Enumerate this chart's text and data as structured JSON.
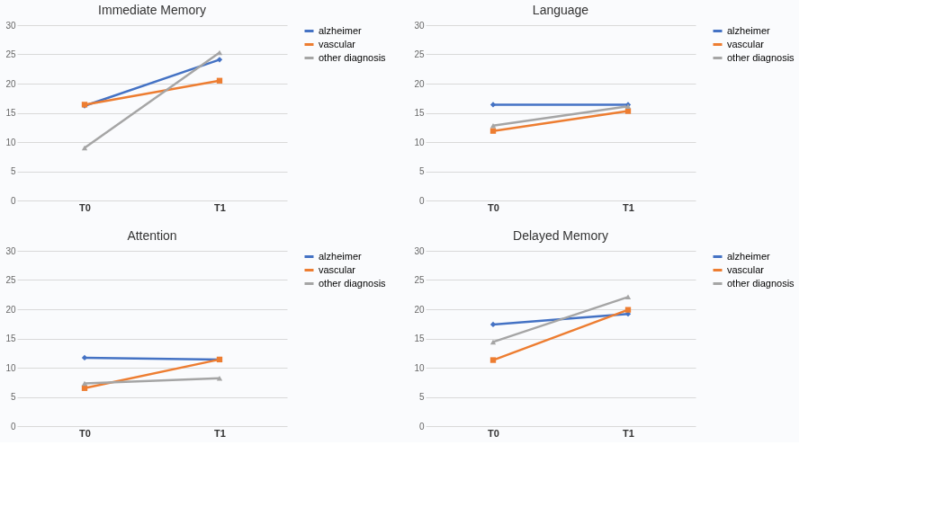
{
  "chart_data": [
    {
      "type": "line",
      "title": "Immediate Memory",
      "categories": [
        "T0",
        "T1"
      ],
      "ylim": [
        0,
        30
      ],
      "yticks": [
        0,
        5,
        10,
        15,
        20,
        25,
        30
      ],
      "grid": "y",
      "legend": "right",
      "series": [
        {
          "name": "alzheimer",
          "color": "#4472c4",
          "marker": "diamond",
          "values": [
            16.2,
            24.1
          ]
        },
        {
          "name": "vascular",
          "color": "#ed7d31",
          "marker": "square",
          "values": [
            16.4,
            20.5
          ]
        },
        {
          "name": "other diagnosis",
          "color": "#a5a5a5",
          "marker": "triangle",
          "values": [
            9.0,
            25.3
          ]
        }
      ]
    },
    {
      "type": "line",
      "title": "Language",
      "categories": [
        "T0",
        "T1"
      ],
      "ylim": [
        0,
        30
      ],
      "yticks": [
        0,
        5,
        10,
        15,
        20,
        25,
        30
      ],
      "grid": "y",
      "legend": "right",
      "series": [
        {
          "name": "alzheimer",
          "color": "#4472c4",
          "marker": "diamond",
          "values": [
            16.4,
            16.4
          ]
        },
        {
          "name": "vascular",
          "color": "#ed7d31",
          "marker": "square",
          "values": [
            11.9,
            15.3
          ]
        },
        {
          "name": "other diagnosis",
          "color": "#a5a5a5",
          "marker": "triangle",
          "values": [
            12.8,
            16.1
          ]
        }
      ]
    },
    {
      "type": "line",
      "title": "Attention",
      "categories": [
        "T0",
        "T1"
      ],
      "ylim": [
        0,
        30
      ],
      "yticks": [
        0,
        5,
        10,
        15,
        20,
        25,
        30
      ],
      "grid": "y",
      "legend": "right",
      "series": [
        {
          "name": "alzheimer",
          "color": "#4472c4",
          "marker": "diamond",
          "values": [
            11.7,
            11.4
          ]
        },
        {
          "name": "vascular",
          "color": "#ed7d31",
          "marker": "square",
          "values": [
            6.5,
            11.4
          ]
        },
        {
          "name": "other diagnosis",
          "color": "#a5a5a5",
          "marker": "triangle",
          "values": [
            7.3,
            8.2
          ]
        }
      ]
    },
    {
      "type": "line",
      "title": "Delayed Memory",
      "categories": [
        "T0",
        "T1"
      ],
      "ylim": [
        0,
        30
      ],
      "yticks": [
        0,
        5,
        10,
        15,
        20,
        25,
        30
      ],
      "grid": "y",
      "legend": "right",
      "series": [
        {
          "name": "alzheimer",
          "color": "#4472c4",
          "marker": "diamond",
          "values": [
            17.4,
            19.2
          ]
        },
        {
          "name": "vascular",
          "color": "#ed7d31",
          "marker": "square",
          "values": [
            11.3,
            19.9
          ]
        },
        {
          "name": "other diagnosis",
          "color": "#a5a5a5",
          "marker": "triangle",
          "values": [
            14.4,
            22.1
          ]
        }
      ]
    }
  ]
}
